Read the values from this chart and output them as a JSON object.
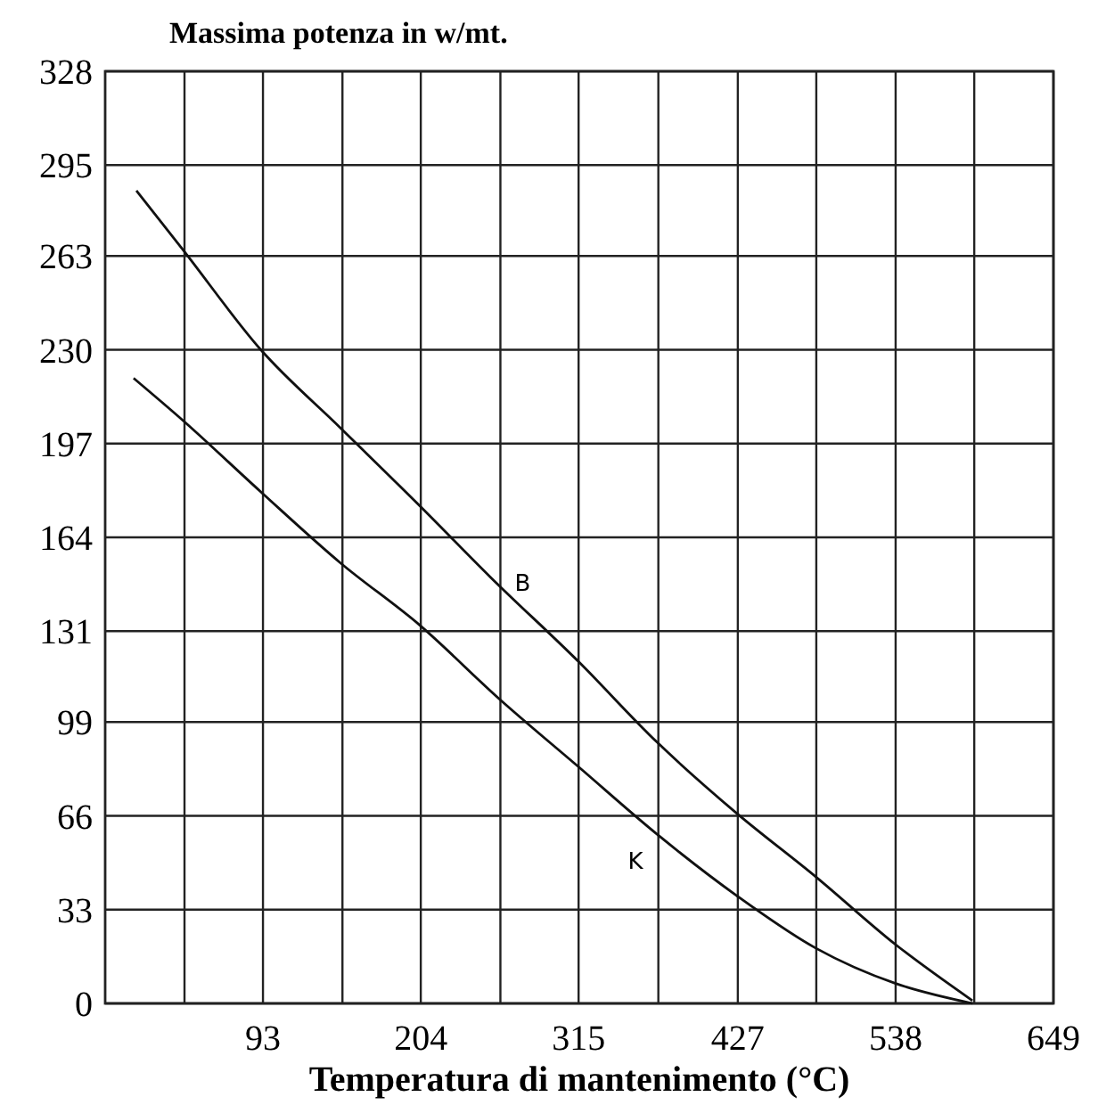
{
  "chart_data": {
    "type": "line",
    "title": "Massima potenza in w/mt.",
    "xlabel": "Temperatura di mantenimento (°C)",
    "xlim": [
      -18,
      649
    ],
    "xticks": [
      {
        "value": 37.8,
        "label": null
      },
      93,
      {
        "value": 148.9,
        "label": null
      },
      204,
      {
        "value": 260,
        "label": null
      },
      315,
      {
        "value": 371.1,
        "label": null
      },
      427,
      {
        "value": 482.2,
        "label": null
      },
      538,
      {
        "value": 593.3,
        "label": null
      },
      649
    ],
    "ylim": [
      0,
      328
    ],
    "yticks": [
      0,
      33,
      66,
      99,
      131,
      164,
      197,
      230,
      263,
      295,
      328
    ],
    "grid": true,
    "marker": "none",
    "line_style": "solid",
    "series": [
      {
        "name": "B",
        "color": "#111111",
        "x": [
          4,
          37,
          91.5,
          147.5,
          203.5,
          253,
          315.5,
          370,
          426,
          482,
          538,
          592
        ],
        "values": [
          286,
          265,
          230,
          202.5,
          175,
          150,
          120,
          92,
          67,
          44.5,
          20.7,
          1
        ]
      },
      {
        "name": "K",
        "color": "#111111",
        "x": [
          2,
          37,
          91.5,
          147.5,
          203.5,
          259.5,
          315.5,
          370,
          426,
          482,
          538,
          592
        ],
        "values": [
          220,
          205,
          180,
          155,
          133,
          107,
          83,
          59.6,
          38,
          19.4,
          7,
          0
        ]
      }
    ]
  }
}
